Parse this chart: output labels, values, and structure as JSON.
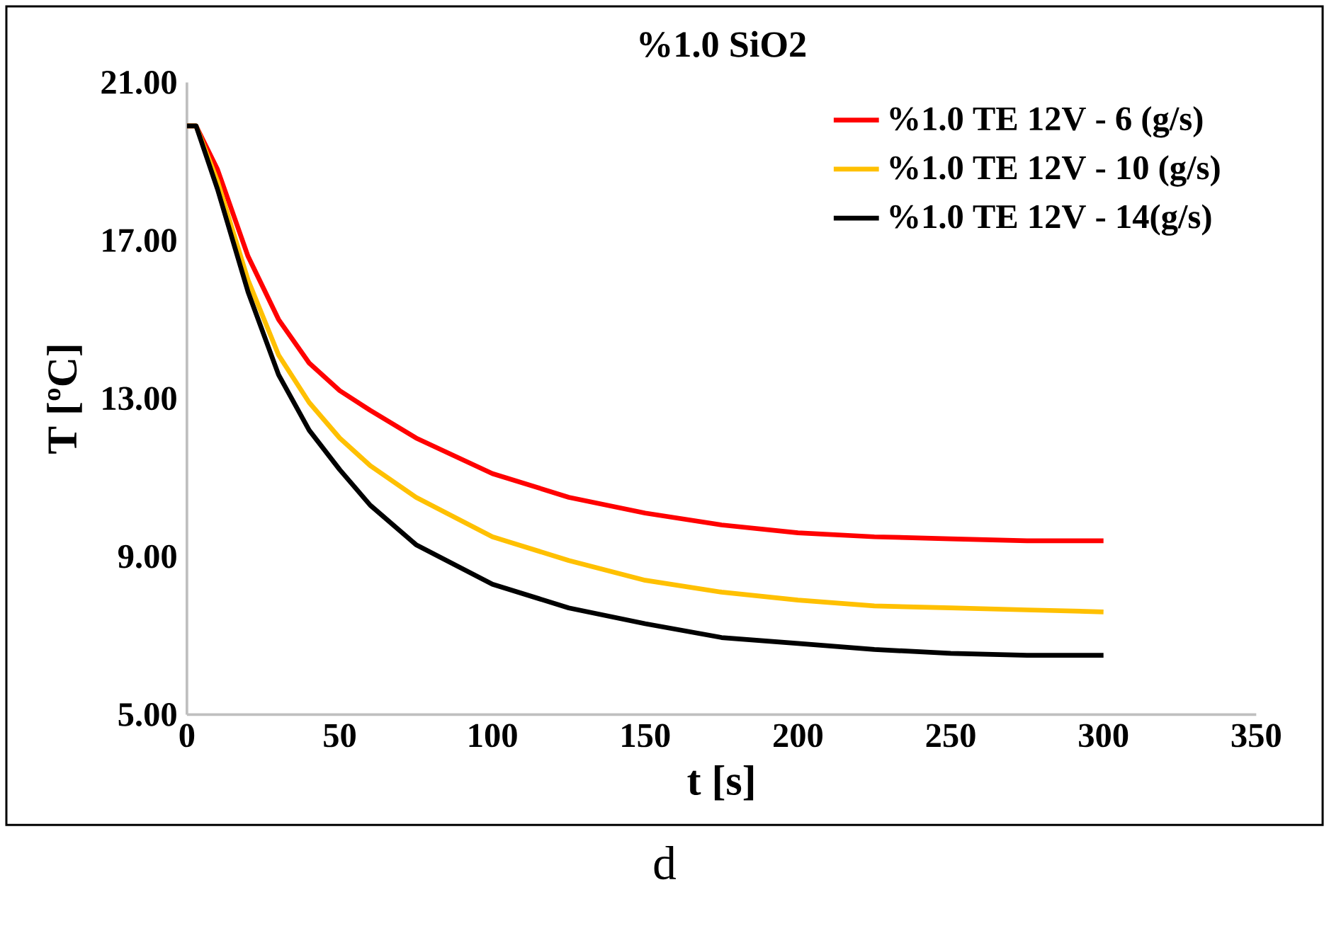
{
  "chart_data": {
    "type": "line",
    "title": "%1.0 SiO2",
    "xlabel": "t [s]",
    "ylabel": "T [ºC]",
    "annotations": [
      "d"
    ],
    "xlim": [
      0,
      350
    ],
    "xticks": [
      0,
      50,
      100,
      150,
      200,
      250,
      300,
      350
    ],
    "ylim": [
      5,
      21
    ],
    "yticks": [
      {
        "value": 5,
        "label": "5.00"
      },
      {
        "value": 9,
        "label": "9.00"
      },
      {
        "value": 13,
        "label": "13.00"
      },
      {
        "value": 17,
        "label": "17.00"
      },
      {
        "value": 21,
        "label": "21.00"
      }
    ],
    "x": [
      0,
      3,
      10,
      20,
      30,
      40,
      50,
      60,
      75,
      100,
      125,
      150,
      175,
      200,
      225,
      250,
      275,
      300
    ],
    "grid": false,
    "legend": "top right",
    "marker": "none",
    "line_style": "solid",
    "series": [
      {
        "name": "%1.0 TE 12V - 6 (g/s)",
        "color": "#ff0000",
        "values": [
          19.9,
          19.9,
          18.8,
          16.6,
          15.0,
          13.9,
          13.2,
          12.7,
          12.0,
          11.1,
          10.5,
          10.1,
          9.8,
          9.6,
          9.5,
          9.45,
          9.4,
          9.4
        ]
      },
      {
        "name": "%1.0 TE 12V - 10 (g/s)",
        "color": "#ffc000",
        "values": [
          19.9,
          19.9,
          18.5,
          16.0,
          14.1,
          12.9,
          12.0,
          11.3,
          10.5,
          9.5,
          8.9,
          8.4,
          8.1,
          7.9,
          7.75,
          7.7,
          7.65,
          7.6
        ]
      },
      {
        "name": "%1.0 TE 12V - 14(g/s)",
        "color": "#000000",
        "values": [
          19.9,
          19.9,
          18.3,
          15.7,
          13.6,
          12.2,
          11.2,
          10.3,
          9.3,
          8.3,
          7.7,
          7.3,
          6.95,
          6.8,
          6.65,
          6.55,
          6.5,
          6.5
        ]
      }
    ]
  }
}
